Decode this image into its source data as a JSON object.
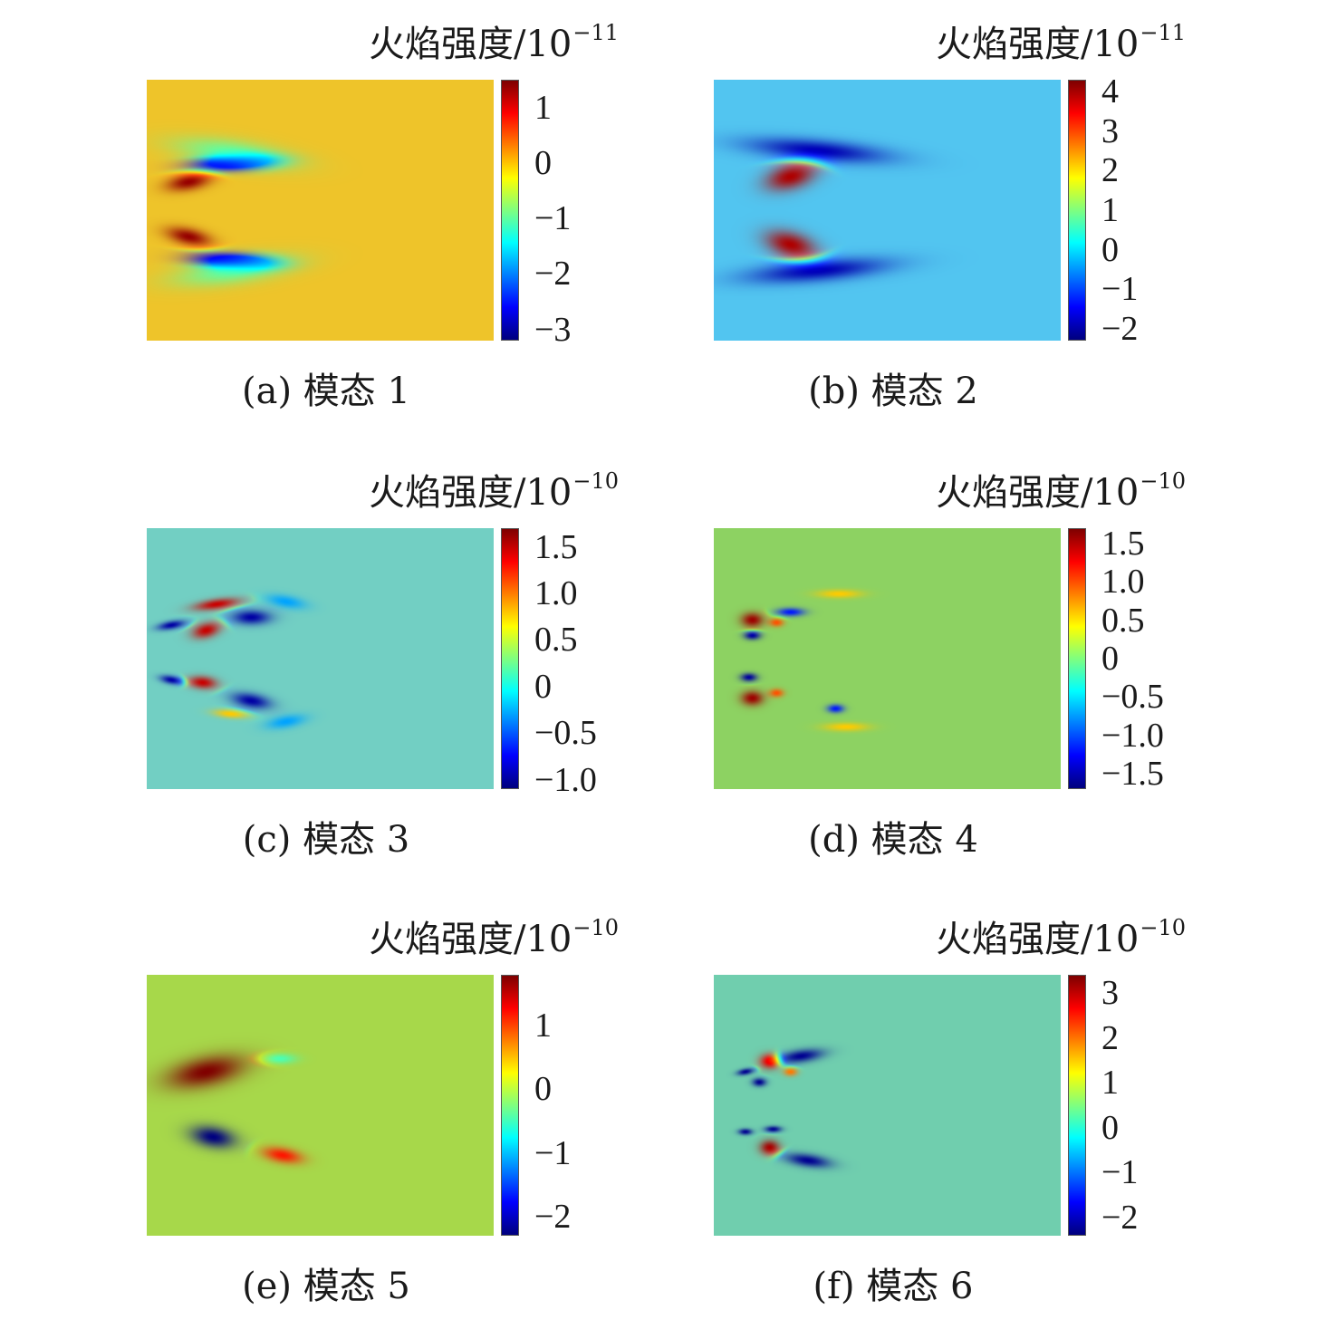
{
  "chart_data": [
    {
      "type": "heatmap",
      "panel": "(a)",
      "caption": "(a) 模态 1",
      "title": "火焰强度/10",
      "title_exponent": "−11",
      "colorbar_ticks": [
        "1",
        "0",
        "−1",
        "−2",
        "−3"
      ],
      "colorbar_tick_values": [
        1,
        0,
        -1,
        -2,
        -3
      ],
      "colorbar_range": [
        -3.2,
        1.5
      ],
      "colormap": "jet",
      "background_color": "#EEC42A",
      "blobs": [
        {
          "cx": 0.24,
          "cy": 0.32,
          "rx": 0.14,
          "ry": 0.035,
          "rot": -3,
          "value": -3
        },
        {
          "cx": 0.12,
          "cy": 0.39,
          "rx": 0.08,
          "ry": 0.04,
          "rot": -10,
          "value": 1.4
        },
        {
          "cx": 0.12,
          "cy": 0.6,
          "rx": 0.08,
          "ry": 0.04,
          "rot": 12,
          "value": 1.4
        },
        {
          "cx": 0.24,
          "cy": 0.69,
          "rx": 0.14,
          "ry": 0.035,
          "rot": 3,
          "value": -3
        },
        {
          "cx": 0.25,
          "cy": 0.28,
          "rx": 0.2,
          "ry": 0.06,
          "rot": 8,
          "value": -1
        },
        {
          "cx": 0.25,
          "cy": 0.73,
          "rx": 0.2,
          "ry": 0.06,
          "rot": -8,
          "value": -1
        }
      ]
    },
    {
      "type": "heatmap",
      "panel": "(b)",
      "caption": "(b) 模态 2",
      "title": "火焰强度/10",
      "title_exponent": "−11",
      "colorbar_ticks": [
        "4",
        "3",
        "2",
        "1",
        "0",
        "−1",
        "−2"
      ],
      "colorbar_tick_values": [
        4,
        3,
        2,
        1,
        0,
        -1,
        -2
      ],
      "colorbar_range": [
        -2.3,
        4.3
      ],
      "colormap": "jet",
      "background_color": "#52C5F0",
      "blobs": [
        {
          "cx": 0.3,
          "cy": 0.27,
          "rx": 0.24,
          "ry": 0.05,
          "rot": 5,
          "value": -2
        },
        {
          "cx": 0.3,
          "cy": 0.73,
          "rx": 0.24,
          "ry": 0.05,
          "rot": -5,
          "value": -2
        },
        {
          "cx": 0.22,
          "cy": 0.37,
          "rx": 0.09,
          "ry": 0.06,
          "rot": -15,
          "value": 4
        },
        {
          "cx": 0.22,
          "cy": 0.63,
          "rx": 0.09,
          "ry": 0.06,
          "rot": 15,
          "value": 4
        }
      ]
    },
    {
      "type": "heatmap",
      "panel": "(c)",
      "caption": "(c) 模态 3",
      "title": "火焰强度/10",
      "title_exponent": "−10",
      "colorbar_ticks": [
        "1.5",
        "1.0",
        "0.5",
        "0",
        "−0.5",
        "−1.0"
      ],
      "colorbar_tick_values": [
        1.5,
        1.0,
        0.5,
        0,
        -0.5,
        -1.0
      ],
      "colorbar_range": [
        -1.1,
        1.7
      ],
      "colormap": "jet",
      "background_color": "#72CFC3",
      "blobs": [
        {
          "cx": 0.2,
          "cy": 0.29,
          "rx": 0.08,
          "ry": 0.025,
          "rot": -8,
          "value": 1.5
        },
        {
          "cx": 0.3,
          "cy": 0.34,
          "rx": 0.07,
          "ry": 0.035,
          "rot": 0,
          "value": -1.0
        },
        {
          "cx": 0.17,
          "cy": 0.39,
          "rx": 0.05,
          "ry": 0.035,
          "rot": -15,
          "value": 1.5
        },
        {
          "cx": 0.07,
          "cy": 0.37,
          "rx": 0.05,
          "ry": 0.02,
          "rot": -10,
          "value": -1.0
        },
        {
          "cx": 0.07,
          "cy": 0.58,
          "rx": 0.04,
          "ry": 0.02,
          "rot": 10,
          "value": -1.0
        },
        {
          "cx": 0.16,
          "cy": 0.59,
          "rx": 0.05,
          "ry": 0.03,
          "rot": 5,
          "value": 1.5
        },
        {
          "cx": 0.3,
          "cy": 0.66,
          "rx": 0.07,
          "ry": 0.035,
          "rot": 10,
          "value": -1.0
        },
        {
          "cx": 0.24,
          "cy": 0.71,
          "rx": 0.06,
          "ry": 0.02,
          "rot": 5,
          "value": 0.8
        },
        {
          "cx": 0.4,
          "cy": 0.28,
          "rx": 0.07,
          "ry": 0.03,
          "rot": 10,
          "value": -0.3
        },
        {
          "cx": 0.4,
          "cy": 0.74,
          "rx": 0.07,
          "ry": 0.03,
          "rot": -10,
          "value": -0.3
        }
      ]
    },
    {
      "type": "heatmap",
      "panel": "(d)",
      "caption": "(d) 模态 4",
      "title": "火焰强度/10",
      "title_exponent": "−10",
      "colorbar_ticks": [
        "1.5",
        "1.0",
        "0.5",
        "0",
        "−0.5",
        "−1.0",
        "−1.5"
      ],
      "colorbar_tick_values": [
        1.5,
        1.0,
        0.5,
        0,
        -0.5,
        -1.0,
        -1.5
      ],
      "colorbar_range": [
        -1.7,
        1.7
      ],
      "colormap": "jet",
      "background_color": "#8DD262",
      "blobs": [
        {
          "cx": 0.11,
          "cy": 0.35,
          "rx": 0.04,
          "ry": 0.035,
          "rot": 0,
          "value": 1.6
        },
        {
          "cx": 0.11,
          "cy": 0.41,
          "rx": 0.03,
          "ry": 0.02,
          "rot": 0,
          "value": -1.6
        },
        {
          "cx": 0.18,
          "cy": 0.36,
          "rx": 0.025,
          "ry": 0.02,
          "rot": 0,
          "value": 1.0
        },
        {
          "cx": 0.22,
          "cy": 0.32,
          "rx": 0.05,
          "ry": 0.02,
          "rot": 0,
          "value": -1.2
        },
        {
          "cx": 0.36,
          "cy": 0.25,
          "rx": 0.08,
          "ry": 0.02,
          "rot": 0,
          "value": 0.6
        },
        {
          "cx": 0.1,
          "cy": 0.57,
          "rx": 0.03,
          "ry": 0.02,
          "rot": 0,
          "value": -1.6
        },
        {
          "cx": 0.11,
          "cy": 0.65,
          "rx": 0.04,
          "ry": 0.035,
          "rot": 0,
          "value": 1.6
        },
        {
          "cx": 0.18,
          "cy": 0.63,
          "rx": 0.025,
          "ry": 0.02,
          "rot": 0,
          "value": 1.0
        },
        {
          "cx": 0.35,
          "cy": 0.69,
          "rx": 0.03,
          "ry": 0.02,
          "rot": 0,
          "value": -1.2
        },
        {
          "cx": 0.38,
          "cy": 0.76,
          "rx": 0.08,
          "ry": 0.02,
          "rot": 0,
          "value": 0.6
        }
      ]
    },
    {
      "type": "heatmap",
      "panel": "(e)",
      "caption": "(e) 模态 5",
      "title": "火焰强度/10",
      "title_exponent": "−10",
      "colorbar_ticks": [
        "1",
        "0",
        "−1",
        "−2"
      ],
      "colorbar_tick_values": [
        1,
        0,
        -1,
        -2
      ],
      "colorbar_range": [
        -2.3,
        1.8
      ],
      "colormap": "jet",
      "background_color": "#A7D84A",
      "blobs": [
        {
          "cx": 0.17,
          "cy": 0.37,
          "rx": 0.14,
          "ry": 0.07,
          "rot": -12,
          "value": 1.8
        },
        {
          "cx": 0.19,
          "cy": 0.62,
          "rx": 0.08,
          "ry": 0.05,
          "rot": 10,
          "value": -2.3
        },
        {
          "cx": 0.39,
          "cy": 0.69,
          "rx": 0.07,
          "ry": 0.035,
          "rot": 10,
          "value": 1.2
        },
        {
          "cx": 0.38,
          "cy": 0.32,
          "rx": 0.06,
          "ry": 0.025,
          "rot": 0,
          "value": -0.5
        }
      ]
    },
    {
      "type": "heatmap",
      "panel": "(f)",
      "caption": "(f) 模态 6",
      "title": "火焰强度/10",
      "title_exponent": "−10",
      "colorbar_ticks": [
        "3",
        "2",
        "1",
        "0",
        "−1",
        "−2"
      ],
      "colorbar_tick_values": [
        3,
        2,
        1,
        0,
        -1,
        -2
      ],
      "colorbar_range": [
        -2.4,
        3.4
      ],
      "colormap": "jet",
      "background_color": "#70CEAE",
      "blobs": [
        {
          "cx": 0.16,
          "cy": 0.33,
          "rx": 0.035,
          "ry": 0.035,
          "rot": 0,
          "value": 3.2
        },
        {
          "cx": 0.09,
          "cy": 0.37,
          "rx": 0.03,
          "ry": 0.015,
          "rot": -10,
          "value": -2.3
        },
        {
          "cx": 0.13,
          "cy": 0.41,
          "rx": 0.025,
          "ry": 0.02,
          "rot": 0,
          "value": -2.3
        },
        {
          "cx": 0.25,
          "cy": 0.31,
          "rx": 0.08,
          "ry": 0.03,
          "rot": -8,
          "value": -2.3
        },
        {
          "cx": 0.22,
          "cy": 0.37,
          "rx": 0.025,
          "ry": 0.02,
          "rot": 0,
          "value": 2.0
        },
        {
          "cx": 0.16,
          "cy": 0.66,
          "rx": 0.035,
          "ry": 0.035,
          "rot": 0,
          "value": 3.2
        },
        {
          "cx": 0.09,
          "cy": 0.6,
          "rx": 0.025,
          "ry": 0.015,
          "rot": 0,
          "value": -2.3
        },
        {
          "cx": 0.17,
          "cy": 0.59,
          "rx": 0.03,
          "ry": 0.015,
          "rot": 0,
          "value": -2.3
        },
        {
          "cx": 0.27,
          "cy": 0.71,
          "rx": 0.08,
          "ry": 0.03,
          "rot": 8,
          "value": -2.3
        }
      ]
    }
  ]
}
